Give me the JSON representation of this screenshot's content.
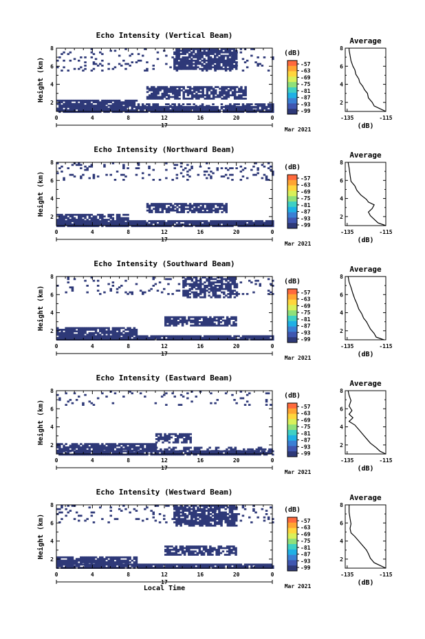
{
  "figure": {
    "xlabel": "Local Time",
    "date_label": "Mar 2021",
    "day_label": "17",
    "colorbar_unit": "(dB)",
    "colorbar_ticks": [
      "-57",
      "-63",
      "-69",
      "-75",
      "-81",
      "-87",
      "-93",
      "-99"
    ],
    "colors": {
      "echo": "#2e3978",
      "axis": "#000000",
      "background": "#ffffff"
    }
  },
  "chart_data": [
    {
      "type": "heatmap",
      "title": "Echo Intensity (Vertical Beam)",
      "ylabel": "Height (km)",
      "xlim": [
        0,
        24
      ],
      "ylim": [
        1,
        8
      ],
      "xticks": [
        "0",
        "4",
        "8",
        "12",
        "16",
        "20",
        "0"
      ],
      "yticks": [
        "2",
        "4",
        "6",
        "8"
      ],
      "value_range_dB": [
        -99,
        -57
      ],
      "layers": [
        {
          "x0": 0,
          "x1": 24,
          "y0": 1.0,
          "y1": 1.6,
          "density": 0.93
        },
        {
          "x0": 0,
          "x1": 9,
          "y0": 1.6,
          "y1": 2.3,
          "density": 0.82
        },
        {
          "x0": 9,
          "x1": 24,
          "y0": 1.5,
          "y1": 1.9,
          "density": 0.55
        },
        {
          "x0": 10,
          "x1": 21,
          "y0": 2.5,
          "y1": 3.8,
          "density": 0.8
        },
        {
          "x0": 13,
          "x1": 20,
          "y0": 5.8,
          "y1": 8.0,
          "density": 0.8
        },
        {
          "x0": 0,
          "x1": 24,
          "y0": 5.5,
          "y1": 8.0,
          "density": 0.1
        }
      ],
      "average_profile": {
        "title": "Average",
        "xlabel": "(dB)",
        "xlim": [
          -136,
          -115
        ],
        "xticks": [
          "-135",
          "-115"
        ],
        "ylim": [
          1,
          8
        ],
        "yticks": [
          "2",
          "4",
          "6",
          "8"
        ],
        "points": [
          [
            -115,
            1.0
          ],
          [
            -118,
            1.3
          ],
          [
            -121,
            1.6
          ],
          [
            -122,
            2.0
          ],
          [
            -124,
            2.5
          ],
          [
            -124.5,
            3.0
          ],
          [
            -126,
            3.4
          ],
          [
            -127,
            3.8
          ],
          [
            -128.5,
            4.2
          ],
          [
            -129,
            4.6
          ],
          [
            -130.5,
            5.1
          ],
          [
            -131,
            5.6
          ],
          [
            -132,
            6.0
          ],
          [
            -133,
            6.6
          ],
          [
            -133.5,
            7.2
          ],
          [
            -134,
            7.8
          ],
          [
            -134,
            8.0
          ]
        ]
      }
    },
    {
      "type": "heatmap",
      "title": "Echo Intensity (Northward Beam)",
      "ylabel": "Height (km)",
      "xlim": [
        0,
        24
      ],
      "ylim": [
        1,
        8
      ],
      "xticks": [
        "0",
        "4",
        "8",
        "12",
        "16",
        "20",
        "0"
      ],
      "yticks": [
        "2",
        "4",
        "6",
        "8"
      ],
      "value_range_dB": [
        -99,
        -57
      ],
      "layers": [
        {
          "x0": 0,
          "x1": 24,
          "y0": 1.0,
          "y1": 1.6,
          "density": 0.93
        },
        {
          "x0": 0,
          "x1": 8,
          "y0": 1.6,
          "y1": 2.3,
          "density": 0.75
        },
        {
          "x0": 10,
          "x1": 19,
          "y0": 2.5,
          "y1": 3.5,
          "density": 0.75
        },
        {
          "x0": 0,
          "x1": 24,
          "y0": 6.0,
          "y1": 8.0,
          "density": 0.12
        }
      ],
      "average_profile": {
        "title": "Average",
        "xlabel": "(dB)",
        "xlim": [
          -136,
          -115
        ],
        "xticks": [
          "-135",
          "-115"
        ],
        "ylim": [
          1,
          8
        ],
        "yticks": [
          "2",
          "4",
          "6",
          "8"
        ],
        "points": [
          [
            -115,
            1.0
          ],
          [
            -119,
            1.3
          ],
          [
            -121,
            1.7
          ],
          [
            -123,
            2.1
          ],
          [
            -124,
            2.5
          ],
          [
            -122,
            2.9
          ],
          [
            -121,
            3.3
          ],
          [
            -124,
            3.6
          ],
          [
            -125,
            3.9
          ],
          [
            -128,
            4.4
          ],
          [
            -130,
            4.9
          ],
          [
            -131,
            5.4
          ],
          [
            -133,
            5.9
          ],
          [
            -133.5,
            6.6
          ],
          [
            -134,
            7.4
          ],
          [
            -134.5,
            8.0
          ]
        ]
      }
    },
    {
      "type": "heatmap",
      "title": "Echo Intensity (Southward Beam)",
      "ylabel": "Height (km)",
      "xlim": [
        0,
        24
      ],
      "ylim": [
        1,
        8
      ],
      "xticks": [
        "0",
        "4",
        "8",
        "12",
        "16",
        "20",
        "0"
      ],
      "yticks": [
        "2",
        "4",
        "6",
        "8"
      ],
      "value_range_dB": [
        -99,
        -57
      ],
      "layers": [
        {
          "x0": 0,
          "x1": 24,
          "y0": 1.0,
          "y1": 1.5,
          "density": 0.93
        },
        {
          "x0": 0,
          "x1": 9,
          "y0": 1.5,
          "y1": 2.4,
          "density": 0.82
        },
        {
          "x0": 12,
          "x1": 20,
          "y0": 2.5,
          "y1": 3.6,
          "density": 0.75
        },
        {
          "x0": 14,
          "x1": 20,
          "y0": 5.8,
          "y1": 8.0,
          "density": 0.6
        },
        {
          "x0": 0,
          "x1": 24,
          "y0": 6.0,
          "y1": 8.0,
          "density": 0.08
        }
      ],
      "average_profile": {
        "title": "Average",
        "xlabel": "(dB)",
        "xlim": [
          -136,
          -115
        ],
        "xticks": [
          "-135",
          "-115"
        ],
        "ylim": [
          1,
          8
        ],
        "yticks": [
          "2",
          "4",
          "6",
          "8"
        ],
        "points": [
          [
            -116,
            1.0
          ],
          [
            -120,
            1.3
          ],
          [
            -121,
            1.7
          ],
          [
            -123,
            2.2
          ],
          [
            -124,
            2.6
          ],
          [
            -125,
            3.0
          ],
          [
            -126.5,
            3.4
          ],
          [
            -127.5,
            3.9
          ],
          [
            -129,
            4.4
          ],
          [
            -130,
            5.0
          ],
          [
            -131,
            5.5
          ],
          [
            -132,
            6.1
          ],
          [
            -133,
            6.8
          ],
          [
            -134,
            7.4
          ],
          [
            -134.5,
            8.0
          ]
        ]
      }
    },
    {
      "type": "heatmap",
      "title": "Echo Intensity (Eastward Beam)",
      "ylabel": "Height (km)",
      "xlim": [
        0,
        24
      ],
      "ylim": [
        1,
        8
      ],
      "xticks": [
        "0",
        "4",
        "8",
        "12",
        "16",
        "20",
        "0"
      ],
      "yticks": [
        "2",
        "4",
        "6",
        "8"
      ],
      "value_range_dB": [
        -99,
        -57
      ],
      "layers": [
        {
          "x0": 0,
          "x1": 24,
          "y0": 1.0,
          "y1": 1.4,
          "density": 0.9
        },
        {
          "x0": 0,
          "x1": 11,
          "y0": 1.4,
          "y1": 2.2,
          "density": 0.85
        },
        {
          "x0": 11,
          "x1": 24,
          "y0": 1.4,
          "y1": 1.8,
          "density": 0.45
        },
        {
          "x0": 11,
          "x1": 15,
          "y0": 2.2,
          "y1": 3.3,
          "density": 0.65
        },
        {
          "x0": 0,
          "x1": 24,
          "y0": 6.5,
          "y1": 8.0,
          "density": 0.08
        }
      ],
      "average_profile": {
        "title": "Average",
        "xlabel": "(dB)",
        "xlim": [
          -136,
          -115
        ],
        "xticks": [
          "-135",
          "-115"
        ],
        "ylim": [
          1,
          8
        ],
        "yticks": [
          "2",
          "4",
          "6",
          "8"
        ],
        "points": [
          [
            -115,
            1.0
          ],
          [
            -118,
            1.3
          ],
          [
            -120,
            1.7
          ],
          [
            -123,
            2.2
          ],
          [
            -125,
            2.7
          ],
          [
            -127,
            3.2
          ],
          [
            -129,
            3.7
          ],
          [
            -131,
            4.2
          ],
          [
            -134,
            4.6
          ],
          [
            -132,
            5.0
          ],
          [
            -134,
            5.4
          ],
          [
            -132.5,
            5.8
          ],
          [
            -134,
            6.3
          ],
          [
            -133,
            6.9
          ],
          [
            -134,
            7.5
          ],
          [
            -134.5,
            8.0
          ]
        ]
      }
    },
    {
      "type": "heatmap",
      "title": "Echo Intensity (Westward Beam)",
      "ylabel": "Height (km)",
      "xlim": [
        0,
        24
      ],
      "ylim": [
        1,
        8
      ],
      "xticks": [
        "0",
        "4",
        "8",
        "12",
        "16",
        "20",
        "0"
      ],
      "yticks": [
        "2",
        "4",
        "6",
        "8"
      ],
      "value_range_dB": [
        -99,
        -57
      ],
      "layers": [
        {
          "x0": 0,
          "x1": 24,
          "y0": 1.0,
          "y1": 1.5,
          "density": 0.93
        },
        {
          "x0": 0,
          "x1": 9,
          "y0": 1.5,
          "y1": 2.3,
          "density": 0.82
        },
        {
          "x0": 12,
          "x1": 20,
          "y0": 2.5,
          "y1": 3.5,
          "density": 0.75
        },
        {
          "x0": 13,
          "x1": 20,
          "y0": 5.8,
          "y1": 8.0,
          "density": 0.75
        },
        {
          "x0": 0,
          "x1": 24,
          "y0": 6.0,
          "y1": 8.0,
          "density": 0.1
        }
      ],
      "average_profile": {
        "title": "Average",
        "xlabel": "(dB)",
        "xlim": [
          -136,
          -115
        ],
        "xticks": [
          "-135",
          "-115"
        ],
        "ylim": [
          1,
          8
        ],
        "yticks": [
          "2",
          "4",
          "6",
          "8"
        ],
        "points": [
          [
            -115,
            1.0
          ],
          [
            -118,
            1.3
          ],
          [
            -121,
            1.6
          ],
          [
            -123,
            2.1
          ],
          [
            -124,
            2.6
          ],
          [
            -125,
            3.0
          ],
          [
            -127,
            3.5
          ],
          [
            -129,
            4.0
          ],
          [
            -131,
            4.5
          ],
          [
            -133,
            4.9
          ],
          [
            -133.5,
            5.4
          ],
          [
            -133,
            5.9
          ],
          [
            -133.5,
            6.5
          ],
          [
            -134,
            7.2
          ],
          [
            -134,
            8.0
          ]
        ]
      }
    }
  ]
}
